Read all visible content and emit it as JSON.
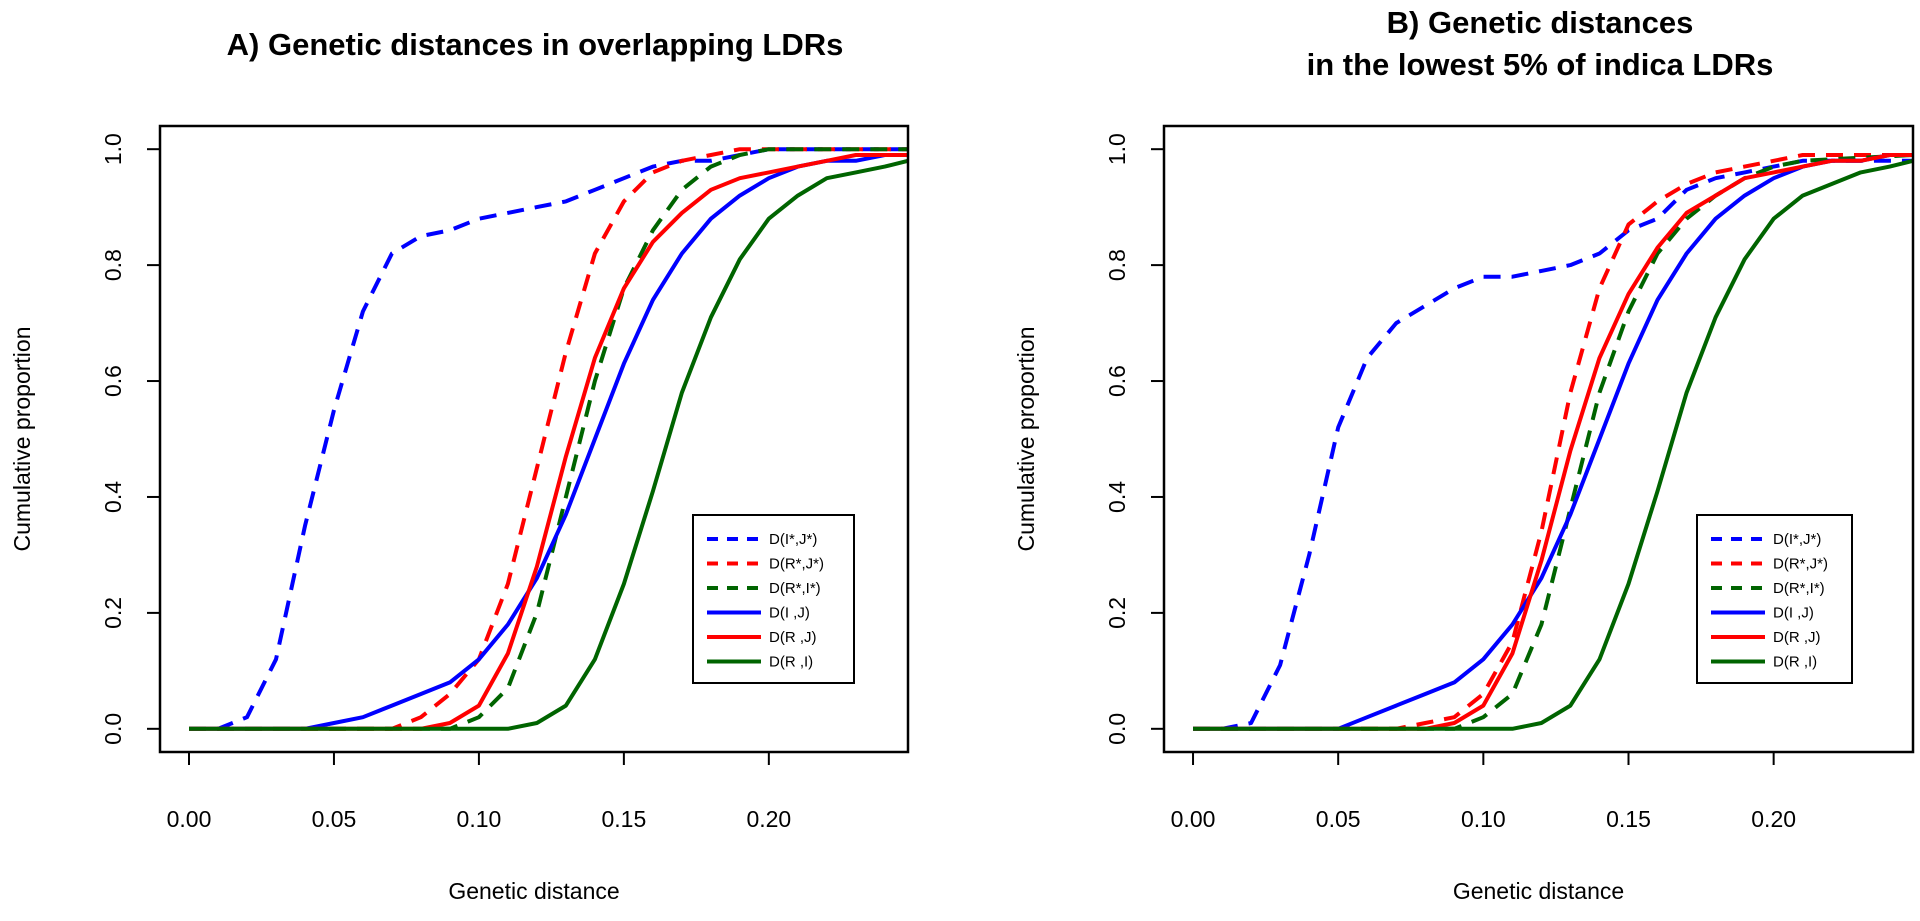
{
  "chart_data": [
    {
      "type": "line",
      "title": [
        "A) Genetic distances in overlapping LDRs"
      ],
      "xlabel": "Genetic distance",
      "ylabel": "Cumulative proportion",
      "xlim": [
        -0.01,
        0.248
      ],
      "ylim": [
        -0.04,
        1.04
      ],
      "x_ticks": [
        "0.00",
        "0.05",
        "0.10",
        "0.15",
        "0.20"
      ],
      "y_ticks": [
        "0.0",
        "0.2",
        "0.4",
        "0.6",
        "0.8",
        "1.0"
      ],
      "legend_position": "bottom-right",
      "series": [
        {
          "name": "D(I*,J*)",
          "color": "#0000ff",
          "dash": true,
          "x": [
            0,
            0.01,
            0.02,
            0.03,
            0.04,
            0.05,
            0.06,
            0.07,
            0.08,
            0.09,
            0.1,
            0.11,
            0.12,
            0.13,
            0.14,
            0.15,
            0.16,
            0.17,
            0.18,
            0.19,
            0.2,
            0.21,
            0.22,
            0.23,
            0.24,
            0.248
          ],
          "y": [
            0,
            0,
            0.02,
            0.12,
            0.35,
            0.55,
            0.72,
            0.82,
            0.85,
            0.86,
            0.88,
            0.89,
            0.9,
            0.91,
            0.93,
            0.95,
            0.97,
            0.98,
            0.98,
            0.99,
            1.0,
            1.0,
            1.0,
            1.0,
            1.0,
            1.0
          ]
        },
        {
          "name": "D(R*,J*)",
          "color": "#ff0000",
          "dash": true,
          "x": [
            0,
            0.07,
            0.08,
            0.09,
            0.1,
            0.11,
            0.12,
            0.13,
            0.14,
            0.15,
            0.16,
            0.17,
            0.18,
            0.19,
            0.2,
            0.248
          ],
          "y": [
            0,
            0,
            0.02,
            0.06,
            0.12,
            0.25,
            0.45,
            0.65,
            0.82,
            0.91,
            0.96,
            0.98,
            0.99,
            1.0,
            1.0,
            1.0
          ]
        },
        {
          "name": "D(R*,I*)",
          "color": "#006400",
          "dash": true,
          "x": [
            0,
            0.09,
            0.1,
            0.11,
            0.12,
            0.13,
            0.14,
            0.15,
            0.16,
            0.17,
            0.18,
            0.19,
            0.2,
            0.21,
            0.248
          ],
          "y": [
            0,
            0,
            0.02,
            0.07,
            0.2,
            0.4,
            0.6,
            0.76,
            0.86,
            0.93,
            0.97,
            0.99,
            1.0,
            1.0,
            1.0
          ]
        },
        {
          "name": "D(I ,J)",
          "color": "#0000ff",
          "dash": false,
          "x": [
            0,
            0.04,
            0.05,
            0.06,
            0.07,
            0.08,
            0.09,
            0.1,
            0.11,
            0.12,
            0.13,
            0.14,
            0.15,
            0.16,
            0.17,
            0.18,
            0.19,
            0.2,
            0.21,
            0.22,
            0.23,
            0.24,
            0.248
          ],
          "y": [
            0,
            0,
            0.01,
            0.02,
            0.04,
            0.06,
            0.08,
            0.12,
            0.18,
            0.26,
            0.37,
            0.5,
            0.63,
            0.74,
            0.82,
            0.88,
            0.92,
            0.95,
            0.97,
            0.98,
            0.98,
            0.99,
            0.99
          ]
        },
        {
          "name": "D(R ,J)",
          "color": "#ff0000",
          "dash": false,
          "x": [
            0,
            0.08,
            0.09,
            0.1,
            0.11,
            0.12,
            0.13,
            0.14,
            0.15,
            0.16,
            0.17,
            0.18,
            0.19,
            0.2,
            0.21,
            0.22,
            0.23,
            0.24,
            0.248
          ],
          "y": [
            0,
            0,
            0.01,
            0.04,
            0.13,
            0.28,
            0.47,
            0.64,
            0.76,
            0.84,
            0.89,
            0.93,
            0.95,
            0.96,
            0.97,
            0.98,
            0.99,
            0.99,
            0.99
          ]
        },
        {
          "name": "D(R ,I)",
          "color": "#006400",
          "dash": false,
          "x": [
            0,
            0.11,
            0.12,
            0.13,
            0.14,
            0.15,
            0.16,
            0.17,
            0.18,
            0.19,
            0.2,
            0.21,
            0.22,
            0.23,
            0.24,
            0.248
          ],
          "y": [
            0,
            0,
            0.01,
            0.04,
            0.12,
            0.25,
            0.41,
            0.58,
            0.71,
            0.81,
            0.88,
            0.92,
            0.95,
            0.96,
            0.97,
            0.98
          ]
        }
      ]
    },
    {
      "type": "line",
      "title": [
        "B) Genetic distances",
        "in the lowest 5% of indica LDRs"
      ],
      "xlabel": "Genetic distance",
      "ylabel": "Cumulative proportion",
      "xlim": [
        -0.01,
        0.248
      ],
      "ylim": [
        -0.04,
        1.04
      ],
      "x_ticks": [
        "0.00",
        "0.05",
        "0.10",
        "0.15",
        "0.20"
      ],
      "y_ticks": [
        "0.0",
        "0.2",
        "0.4",
        "0.6",
        "0.8",
        "1.0"
      ],
      "legend_position": "bottom-right",
      "series": [
        {
          "name": "D(I*,J*)",
          "color": "#0000ff",
          "dash": true,
          "x": [
            0,
            0.01,
            0.02,
            0.03,
            0.04,
            0.05,
            0.06,
            0.07,
            0.08,
            0.09,
            0.1,
            0.11,
            0.12,
            0.13,
            0.14,
            0.15,
            0.16,
            0.17,
            0.18,
            0.19,
            0.2,
            0.21,
            0.22,
            0.23,
            0.24,
            0.248
          ],
          "y": [
            0,
            0,
            0.01,
            0.11,
            0.3,
            0.52,
            0.64,
            0.7,
            0.73,
            0.76,
            0.78,
            0.78,
            0.79,
            0.8,
            0.82,
            0.86,
            0.88,
            0.93,
            0.95,
            0.96,
            0.97,
            0.98,
            0.98,
            0.98,
            0.98,
            0.98
          ]
        },
        {
          "name": "D(R*,J*)",
          "color": "#ff0000",
          "dash": true,
          "x": [
            0,
            0.07,
            0.08,
            0.09,
            0.1,
            0.11,
            0.12,
            0.13,
            0.14,
            0.15,
            0.16,
            0.17,
            0.18,
            0.19,
            0.2,
            0.21,
            0.22,
            0.248
          ],
          "y": [
            0,
            0,
            0.01,
            0.02,
            0.06,
            0.15,
            0.34,
            0.58,
            0.76,
            0.87,
            0.91,
            0.94,
            0.96,
            0.97,
            0.98,
            0.99,
            0.99,
            0.99
          ]
        },
        {
          "name": "D(R*,I*)",
          "color": "#006400",
          "dash": true,
          "x": [
            0,
            0.09,
            0.1,
            0.11,
            0.12,
            0.13,
            0.14,
            0.15,
            0.16,
            0.17,
            0.18,
            0.19,
            0.2,
            0.21,
            0.248
          ],
          "y": [
            0,
            0,
            0.02,
            0.06,
            0.18,
            0.38,
            0.58,
            0.72,
            0.82,
            0.88,
            0.92,
            0.95,
            0.97,
            0.98,
            0.99
          ]
        },
        {
          "name": "D(I ,J)",
          "color": "#0000ff",
          "dash": false,
          "x": [
            0,
            0.05,
            0.06,
            0.07,
            0.08,
            0.09,
            0.1,
            0.11,
            0.12,
            0.13,
            0.14,
            0.15,
            0.16,
            0.17,
            0.18,
            0.19,
            0.2,
            0.21,
            0.22,
            0.23,
            0.24,
            0.248
          ],
          "y": [
            0,
            0,
            0.02,
            0.04,
            0.06,
            0.08,
            0.12,
            0.18,
            0.26,
            0.37,
            0.5,
            0.63,
            0.74,
            0.82,
            0.88,
            0.92,
            0.95,
            0.97,
            0.98,
            0.98,
            0.99,
            0.99
          ]
        },
        {
          "name": "D(R ,J)",
          "color": "#ff0000",
          "dash": false,
          "x": [
            0,
            0.08,
            0.09,
            0.1,
            0.11,
            0.12,
            0.13,
            0.14,
            0.15,
            0.16,
            0.17,
            0.18,
            0.19,
            0.2,
            0.21,
            0.22,
            0.23,
            0.24,
            0.248
          ],
          "y": [
            0,
            0,
            0.01,
            0.04,
            0.13,
            0.29,
            0.48,
            0.64,
            0.75,
            0.83,
            0.89,
            0.92,
            0.95,
            0.96,
            0.97,
            0.98,
            0.98,
            0.99,
            0.99
          ]
        },
        {
          "name": "D(R ,I)",
          "color": "#006400",
          "dash": false,
          "x": [
            0,
            0.11,
            0.12,
            0.13,
            0.14,
            0.15,
            0.16,
            0.17,
            0.18,
            0.19,
            0.2,
            0.21,
            0.22,
            0.23,
            0.24,
            0.248
          ],
          "y": [
            0,
            0,
            0.01,
            0.04,
            0.12,
            0.25,
            0.41,
            0.58,
            0.71,
            0.81,
            0.88,
            0.92,
            0.94,
            0.96,
            0.97,
            0.98
          ]
        }
      ]
    }
  ]
}
